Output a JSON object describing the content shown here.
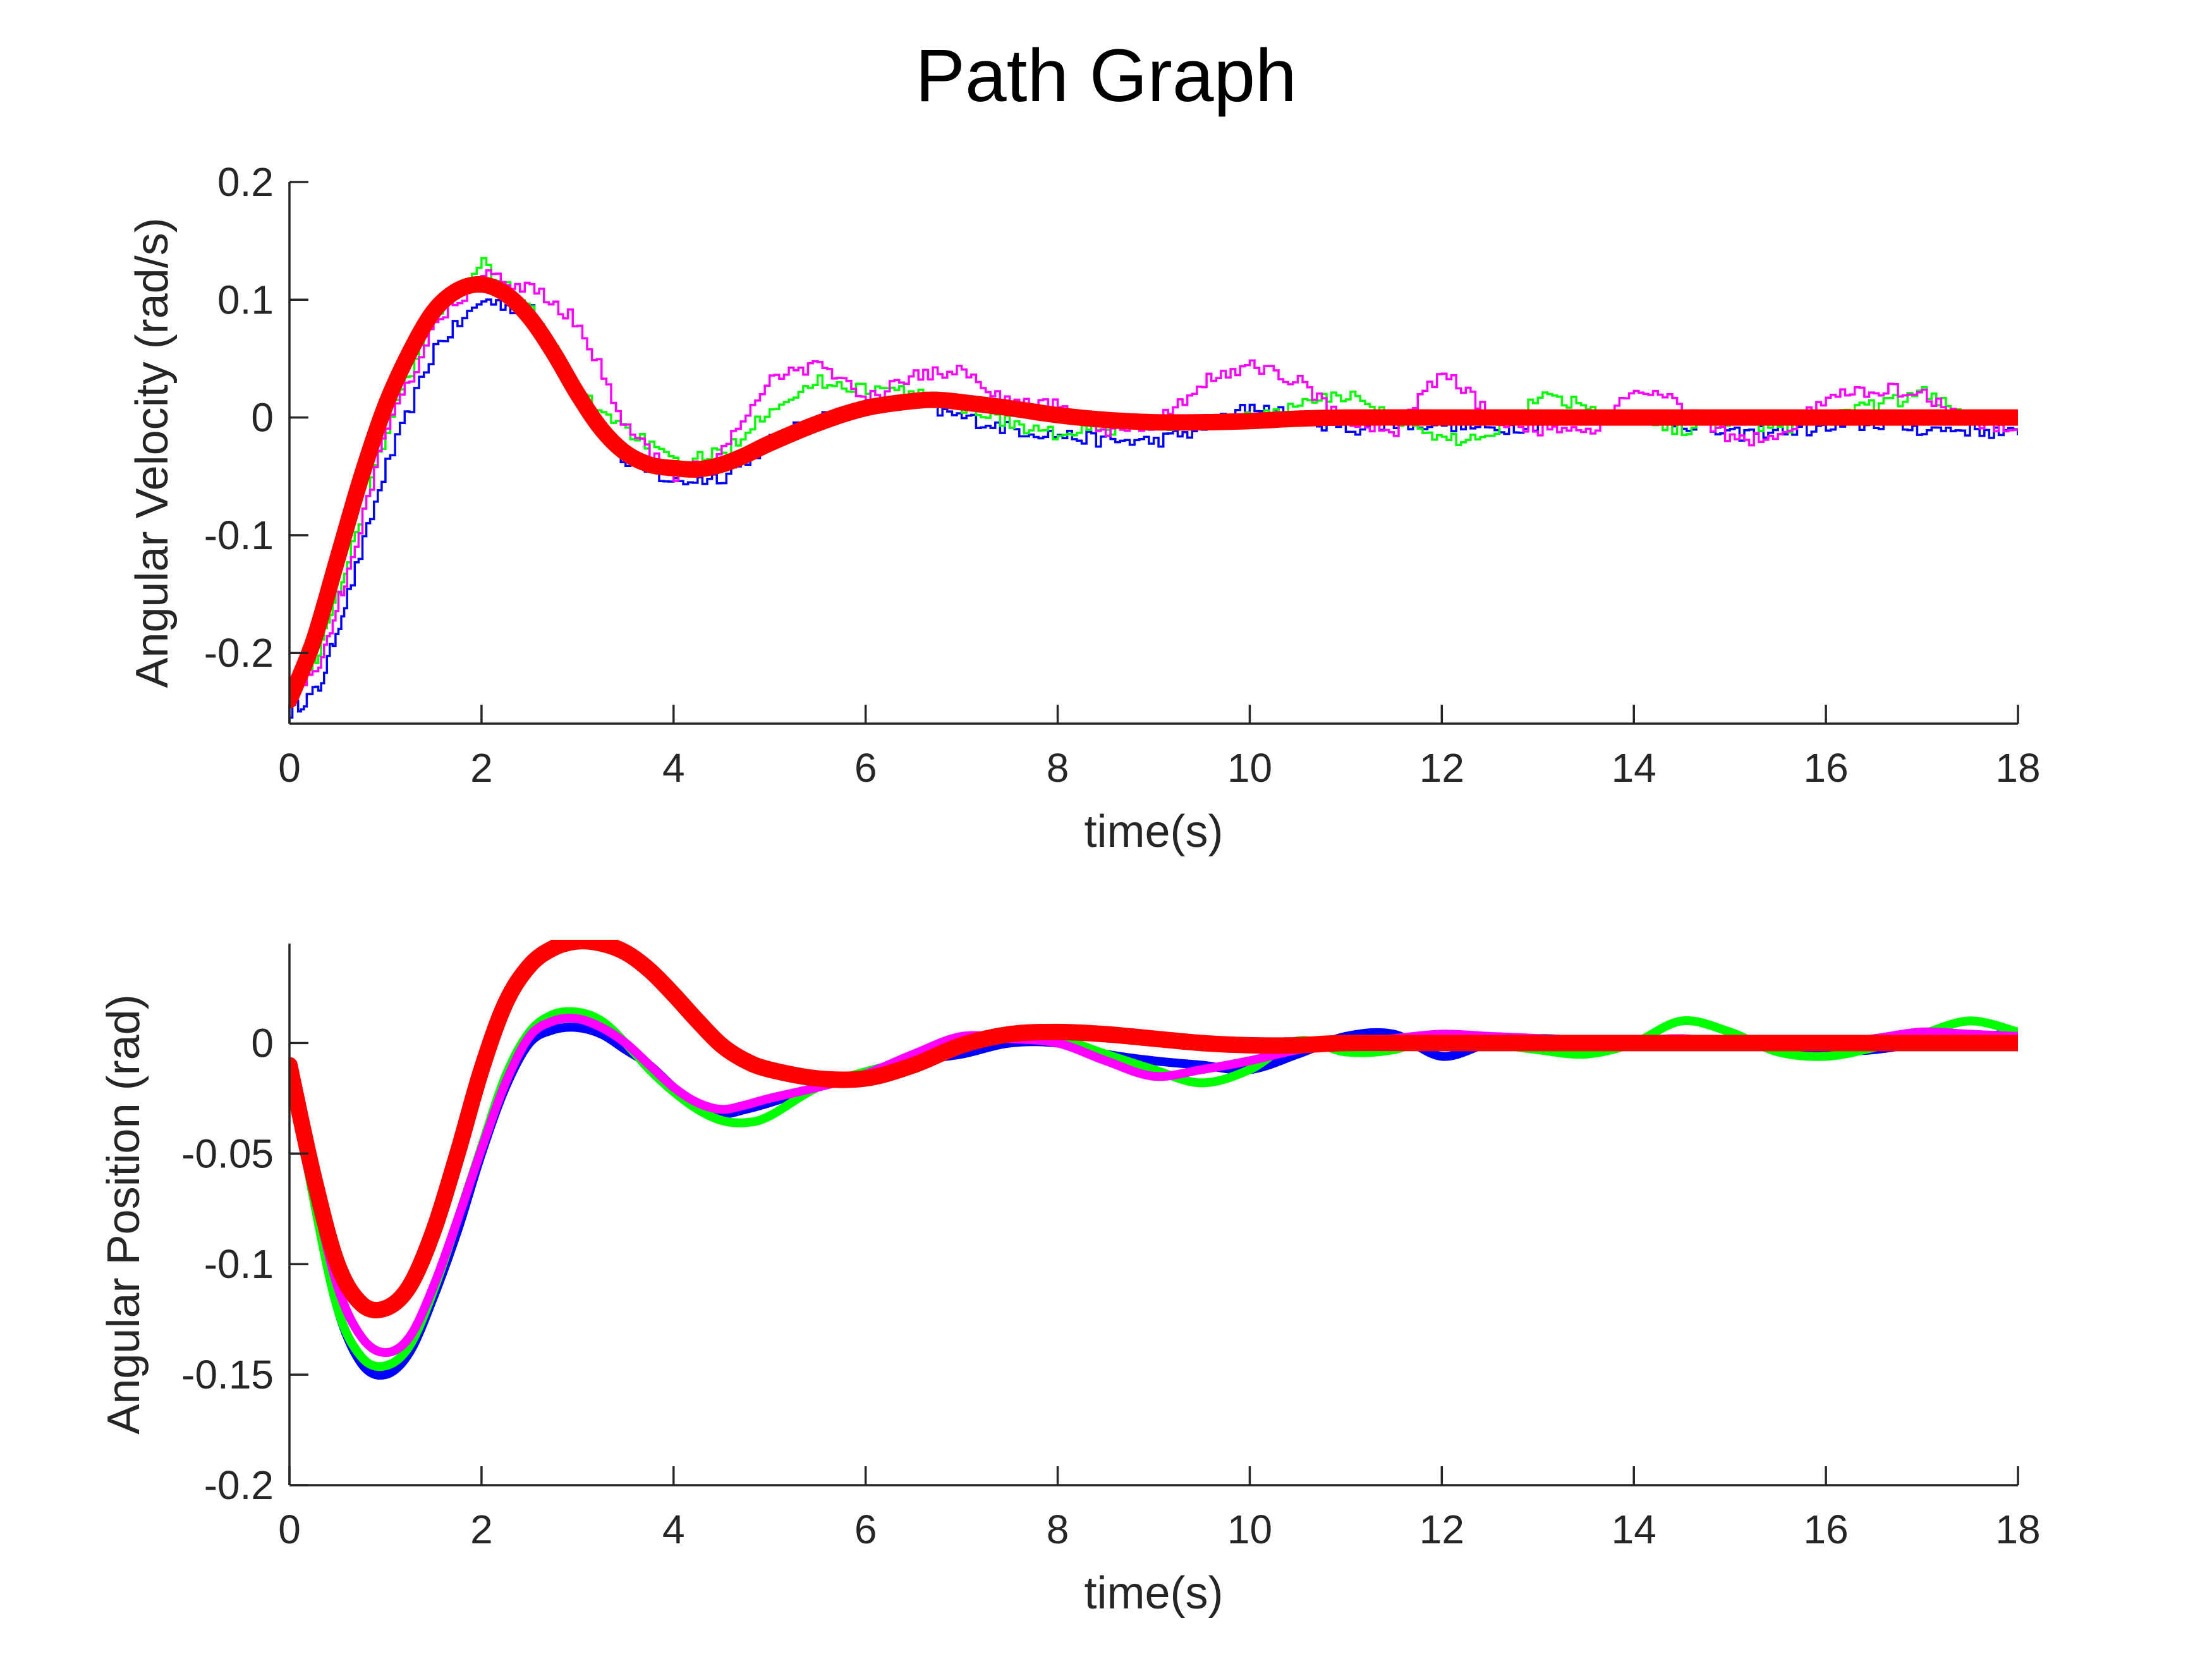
{
  "figure": {
    "title": "Path Graph"
  },
  "colors": {
    "blue": "#0000ff",
    "green": "#00ff00",
    "magenta": "#ff00ff",
    "red": "#ff0000",
    "axis": "#262626",
    "background": "#ffffff"
  },
  "chart_data": [
    {
      "type": "line",
      "title": "",
      "xlabel": "time(s)",
      "ylabel": "Angular Velocity (rad/s)",
      "xlim": [
        0,
        18
      ],
      "ylim": [
        -0.26,
        0.2
      ],
      "xticks": [
        0,
        2,
        4,
        6,
        8,
        10,
        12,
        14,
        16,
        18
      ],
      "xtick_labels": [
        "0",
        "2",
        "4",
        "6",
        "8",
        "10",
        "12",
        "14",
        "16",
        "18"
      ],
      "yticks": [
        -0.2,
        -0.1,
        0,
        0.1,
        0.2
      ],
      "ytick_labels": [
        "-0.2",
        "-0.1",
        "0",
        "0.1",
        "0.2"
      ],
      "grid": false,
      "legend": "none",
      "series": [
        {
          "color": "#0000ff",
          "style": "stairs",
          "x": [
            0,
            0.3,
            0.6,
            1.0,
            1.5,
            2.0,
            2.5,
            3.0,
            3.5,
            4.0,
            4.5,
            5.0,
            5.5,
            6.0,
            6.5,
            7.0,
            7.5,
            8.0,
            8.5,
            9.0,
            9.5,
            10.0,
            10.5,
            11.0,
            11.5,
            12.0,
            12.5,
            13.0,
            13.5,
            14.0,
            14.5,
            15.0,
            15.5,
            16.0,
            16.5,
            17.0,
            17.5,
            18.0
          ],
          "y": [
            -0.25,
            -0.23,
            -0.15,
            -0.04,
            0.06,
            0.1,
            0.09,
            0.02,
            -0.04,
            -0.055,
            -0.05,
            -0.02,
            0.0,
            0.01,
            0.01,
            0.0,
            -0.01,
            -0.015,
            -0.02,
            -0.02,
            -0.01,
            0.01,
            0.0,
            -0.01,
            -0.005,
            -0.005,
            -0.01,
            -0.005,
            0.0,
            0.0,
            -0.005,
            -0.015,
            -0.01,
            -0.01,
            -0.005,
            -0.01,
            -0.01,
            -0.015
          ]
        },
        {
          "color": "#00ff00",
          "style": "stairs",
          "x": [
            0,
            0.3,
            0.6,
            1.0,
            1.5,
            2.0,
            2.5,
            3.0,
            3.5,
            4.0,
            4.5,
            5.0,
            5.5,
            6.0,
            6.5,
            7.0,
            7.5,
            8.0,
            8.5,
            9.0,
            9.5,
            10.0,
            10.5,
            11.0,
            11.5,
            12.0,
            12.5,
            13.0,
            13.5,
            14.0,
            14.5,
            15.0,
            15.5,
            16.0,
            16.5,
            17.0,
            17.5,
            18.0
          ],
          "y": [
            -0.23,
            -0.2,
            -0.12,
            -0.01,
            0.09,
            0.13,
            0.09,
            0.02,
            -0.01,
            -0.04,
            -0.03,
            0.01,
            0.03,
            0.025,
            0.02,
            0.01,
            -0.005,
            -0.015,
            -0.01,
            -0.005,
            -0.005,
            0.0,
            0.01,
            0.02,
            0.0,
            -0.02,
            -0.015,
            0.02,
            0.01,
            0.0,
            -0.01,
            0.0,
            -0.01,
            0.0,
            0.01,
            0.02,
            0.0,
            -0.005
          ]
        },
        {
          "color": "#ff00ff",
          "style": "stairs",
          "x": [
            0,
            0.3,
            0.6,
            1.0,
            1.5,
            2.0,
            2.5,
            3.0,
            3.5,
            4.0,
            4.5,
            5.0,
            5.5,
            6.0,
            6.5,
            7.0,
            7.5,
            8.0,
            8.5,
            9.0,
            9.5,
            10.0,
            10.5,
            11.0,
            11.5,
            12.0,
            12.5,
            13.0,
            13.5,
            14.0,
            14.5,
            15.0,
            15.5,
            16.0,
            16.5,
            17.0,
            17.5,
            18.0
          ],
          "y": [
            -0.24,
            -0.21,
            -0.13,
            -0.01,
            0.08,
            0.12,
            0.11,
            0.08,
            -0.01,
            -0.05,
            -0.03,
            0.035,
            0.045,
            0.015,
            0.035,
            0.04,
            0.01,
            0.01,
            -0.01,
            -0.005,
            0.03,
            0.045,
            0.03,
            -0.005,
            -0.01,
            0.04,
            0.0,
            -0.01,
            -0.015,
            0.025,
            0.01,
            -0.02,
            -0.015,
            0.015,
            0.025,
            0.02,
            -0.005,
            -0.01
          ]
        },
        {
          "color": "#ff0000",
          "style": "smooth",
          "line_width": "thick",
          "x": [
            0,
            0.25,
            0.5,
            0.75,
            1.0,
            1.25,
            1.5,
            1.75,
            2.0,
            2.25,
            2.5,
            2.75,
            3.0,
            3.25,
            3.5,
            3.75,
            4.0,
            4.25,
            4.5,
            4.75,
            5.0,
            5.5,
            6.0,
            6.5,
            6.75,
            7.0,
            7.5,
            8.0,
            8.5,
            9.0,
            9.5,
            10.0,
            10.5,
            11.0,
            12.0,
            13.0,
            14.0,
            15.0,
            16.0,
            17.0,
            18.0
          ],
          "y": [
            -0.24,
            -0.19,
            -0.12,
            -0.05,
            0.01,
            0.055,
            0.09,
            0.108,
            0.113,
            0.105,
            0.085,
            0.055,
            0.02,
            -0.01,
            -0.03,
            -0.04,
            -0.043,
            -0.044,
            -0.04,
            -0.032,
            -0.022,
            -0.005,
            0.008,
            0.014,
            0.015,
            0.013,
            0.008,
            0.002,
            -0.002,
            -0.004,
            -0.004,
            -0.003,
            -0.001,
            0.0,
            0.0,
            0.0,
            0.0,
            0.0,
            0.0,
            0.0,
            0.0
          ]
        }
      ]
    },
    {
      "type": "line",
      "title": "",
      "xlabel": "time(s)",
      "ylabel": "Angular Position (rad)",
      "xlim": [
        0,
        18
      ],
      "ylim": [
        -0.2,
        0.045
      ],
      "xticks": [
        0,
        2,
        4,
        6,
        8,
        10,
        12,
        14,
        16,
        18
      ],
      "xtick_labels": [
        "0",
        "2",
        "4",
        "6",
        "8",
        "10",
        "12",
        "14",
        "16",
        "18"
      ],
      "yticks": [
        -0.2,
        -0.15,
        -0.1,
        -0.05,
        0
      ],
      "ytick_labels": [
        "-0.2",
        "-0.15",
        "-0.1",
        "-0.05",
        "0"
      ],
      "grid": false,
      "legend": "none",
      "series": [
        {
          "color": "#0000ff",
          "style": "smooth",
          "line_width": "medium",
          "x": [
            0,
            0.25,
            0.5,
            0.75,
            1.0,
            1.25,
            1.5,
            1.75,
            2.0,
            2.25,
            2.5,
            2.75,
            3.0,
            3.25,
            3.5,
            3.75,
            4.0,
            4.25,
            4.5,
            4.75,
            5.0,
            5.5,
            6.0,
            6.5,
            7.0,
            7.5,
            8.0,
            8.5,
            9.0,
            9.5,
            10.0,
            10.5,
            11.0,
            11.5,
            12.0,
            12.5,
            13.0,
            13.5,
            14.0,
            14.5,
            15.0,
            15.5,
            16.0,
            16.5,
            17.0,
            17.5,
            18.0
          ],
          "y": [
            -0.01,
            -0.07,
            -0.12,
            -0.145,
            -0.15,
            -0.14,
            -0.115,
            -0.085,
            -0.05,
            -0.02,
            0.0,
            0.006,
            0.007,
            0.004,
            -0.003,
            -0.01,
            -0.02,
            -0.028,
            -0.032,
            -0.03,
            -0.027,
            -0.02,
            -0.013,
            -0.008,
            -0.005,
            0.0,
            0.0,
            -0.005,
            -0.008,
            -0.01,
            -0.012,
            -0.005,
            0.003,
            0.004,
            -0.006,
            0.0,
            0.002,
            0.001,
            0.0,
            0.0,
            0.0,
            -0.002,
            -0.004,
            -0.003,
            0.0,
            0.002,
            0.005
          ]
        },
        {
          "color": "#00ff00",
          "style": "smooth",
          "line_width": "medium",
          "x": [
            0,
            0.25,
            0.5,
            0.75,
            1.0,
            1.25,
            1.5,
            1.75,
            2.0,
            2.25,
            2.5,
            2.75,
            3.0,
            3.25,
            3.5,
            3.75,
            4.0,
            4.25,
            4.5,
            4.75,
            5.0,
            5.5,
            6.0,
            6.5,
            7.0,
            7.5,
            8.0,
            8.5,
            9.0,
            9.5,
            10.0,
            10.5,
            11.0,
            11.5,
            12.0,
            12.5,
            13.0,
            13.5,
            14.0,
            14.5,
            15.0,
            15.5,
            16.0,
            16.5,
            17.0,
            17.5,
            18.0
          ],
          "y": [
            -0.01,
            -0.07,
            -0.12,
            -0.142,
            -0.146,
            -0.137,
            -0.112,
            -0.08,
            -0.047,
            -0.015,
            0.005,
            0.013,
            0.014,
            0.01,
            0.0,
            -0.012,
            -0.022,
            -0.03,
            -0.035,
            -0.036,
            -0.033,
            -0.02,
            -0.013,
            -0.008,
            -0.002,
            0.003,
            0.002,
            -0.005,
            -0.012,
            -0.018,
            -0.012,
            0.001,
            -0.004,
            -0.003,
            0.004,
            0.0,
            -0.003,
            -0.005,
            0.0,
            0.01,
            0.005,
            -0.004,
            -0.006,
            -0.002,
            0.004,
            0.01,
            0.005
          ]
        },
        {
          "color": "#ff00ff",
          "style": "smooth",
          "line_width": "medium",
          "x": [
            0,
            0.25,
            0.5,
            0.75,
            1.0,
            1.25,
            1.5,
            1.75,
            2.0,
            2.25,
            2.5,
            2.75,
            3.0,
            3.25,
            3.5,
            3.75,
            4.0,
            4.25,
            4.5,
            4.75,
            5.0,
            5.5,
            6.0,
            6.5,
            7.0,
            7.5,
            8.0,
            8.5,
            9.0,
            9.5,
            10.0,
            10.5,
            11.0,
            11.5,
            12.0,
            12.5,
            13.0,
            13.5,
            14.0,
            14.5,
            15.0,
            15.5,
            16.0,
            16.5,
            17.0,
            17.5,
            18.0
          ],
          "y": [
            -0.01,
            -0.065,
            -0.11,
            -0.133,
            -0.14,
            -0.133,
            -0.11,
            -0.08,
            -0.048,
            -0.018,
            0.003,
            0.01,
            0.011,
            0.007,
            0.0,
            -0.01,
            -0.02,
            -0.027,
            -0.03,
            -0.028,
            -0.025,
            -0.02,
            -0.014,
            -0.005,
            0.003,
            0.002,
            0.0,
            -0.008,
            -0.015,
            -0.012,
            -0.008,
            -0.003,
            0.0,
            0.002,
            0.004,
            0.003,
            0.002,
            0.0,
            0.001,
            0.002,
            0.0,
            -0.001,
            0.0,
            0.002,
            0.005,
            0.004,
            0.003
          ]
        },
        {
          "color": "#ff0000",
          "style": "smooth",
          "line_width": "thick",
          "x": [
            0,
            0.25,
            0.5,
            0.75,
            1.0,
            1.25,
            1.5,
            1.75,
            2.0,
            2.25,
            2.5,
            2.75,
            3.0,
            3.25,
            3.5,
            3.75,
            4.0,
            4.25,
            4.5,
            4.75,
            5.0,
            5.5,
            6.0,
            6.5,
            7.0,
            7.5,
            8.0,
            8.5,
            9.0,
            9.5,
            10.0,
            10.5,
            11.0,
            12.0,
            13.0,
            14.0,
            15.0,
            16.0,
            17.0,
            18.0
          ],
          "y": [
            -0.01,
            -0.06,
            -0.1,
            -0.118,
            -0.12,
            -0.11,
            -0.085,
            -0.05,
            -0.012,
            0.018,
            0.035,
            0.043,
            0.046,
            0.045,
            0.041,
            0.033,
            0.022,
            0.01,
            -0.001,
            -0.008,
            -0.012,
            -0.016,
            -0.016,
            -0.01,
            -0.001,
            0.004,
            0.005,
            0.004,
            0.002,
            0.0,
            -0.001,
            -0.001,
            0.0,
            0.0,
            0.0,
            0.0,
            0.0,
            0.0,
            0.0,
            0.0
          ]
        }
      ]
    }
  ]
}
